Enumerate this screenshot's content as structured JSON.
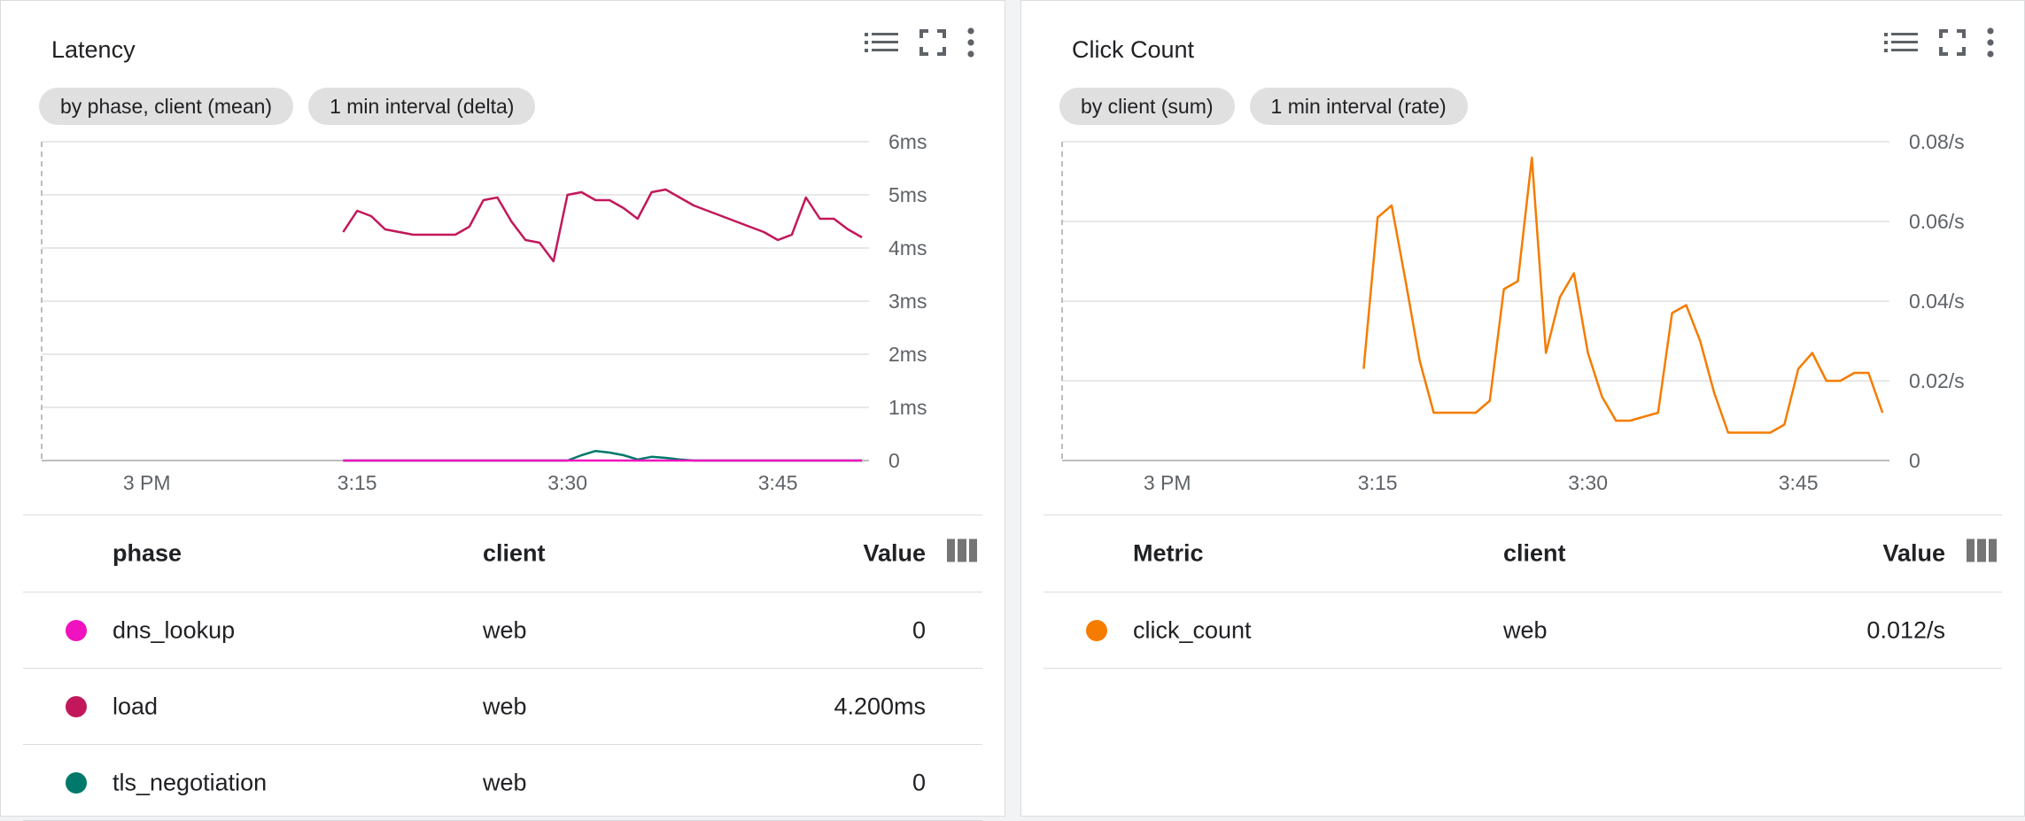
{
  "panels": [
    {
      "title": "Latency",
      "chips": [
        "by phase, client (mean)",
        "1 min interval (delta)"
      ],
      "columns": [
        "phase",
        "client",
        "Value"
      ],
      "rows": [
        {
          "name": "dns_lookup",
          "client": "web",
          "value": "0",
          "color": "#f012be"
        },
        {
          "name": "load",
          "client": "web",
          "value": "4.200ms",
          "color": "#c2185b"
        },
        {
          "name": "tls_negotiation",
          "client": "web",
          "value": "0",
          "color": "#00796b"
        }
      ]
    },
    {
      "title": "Click Count",
      "chips": [
        "by client (sum)",
        "1 min interval (rate)"
      ],
      "columns": [
        "Metric",
        "client",
        "Value"
      ],
      "rows": [
        {
          "name": "click_count",
          "client": "web",
          "value": "0.012/s",
          "color": "#f57c00"
        }
      ]
    }
  ],
  "chart_data": [
    {
      "type": "line",
      "title": "Latency",
      "x_ticks": [
        "3 PM",
        "3:15",
        "3:30",
        "3:45"
      ],
      "y_ticks": [
        "0",
        "1ms",
        "2ms",
        "3ms",
        "4ms",
        "5ms",
        "6ms"
      ],
      "x_unit": "minutes after 3 PM",
      "ylim": [
        0,
        6
      ],
      "xlim": [
        -7.5,
        51.5
      ],
      "grid": true,
      "series": [
        {
          "name": "load",
          "color": "#c2185b",
          "x": [
            14,
            15,
            16,
            17,
            18,
            19,
            20,
            21,
            22,
            23,
            24,
            25,
            26,
            27,
            28,
            29,
            30,
            31,
            32,
            33,
            34,
            35,
            36,
            37,
            38,
            39,
            40,
            41,
            42,
            43,
            44,
            45,
            46,
            47,
            48,
            49,
            50,
            51
          ],
          "y": [
            4.3,
            4.7,
            4.6,
            4.35,
            4.3,
            4.25,
            4.25,
            4.25,
            4.25,
            4.4,
            4.9,
            4.95,
            4.5,
            4.15,
            4.1,
            3.75,
            5.0,
            5.05,
            4.9,
            4.9,
            4.75,
            4.55,
            5.05,
            5.1,
            4.95,
            4.8,
            4.7,
            4.6,
            4.5,
            4.4,
            4.3,
            4.15,
            4.25,
            4.95,
            4.55,
            4.55,
            4.35,
            4.2
          ]
        },
        {
          "name": "tls_negotiation",
          "color": "#00796b",
          "x": [
            14,
            30,
            31,
            32,
            33,
            34,
            35,
            36,
            37,
            38,
            39,
            51
          ],
          "y": [
            0,
            0,
            0.1,
            0.18,
            0.15,
            0.1,
            0.02,
            0.07,
            0.05,
            0.02,
            0,
            0
          ]
        },
        {
          "name": "dns_lookup",
          "color": "#f012be",
          "x": [
            14,
            51
          ],
          "y": [
            0,
            0
          ]
        }
      ]
    },
    {
      "type": "line",
      "title": "Click Count",
      "x_ticks": [
        "3 PM",
        "3:15",
        "3:30",
        "3:45"
      ],
      "y_ticks": [
        "0",
        "0.02/s",
        "0.04/s",
        "0.06/s",
        "0.08/s"
      ],
      "x_unit": "minutes after 3 PM",
      "ylim": [
        0,
        0.08
      ],
      "xlim": [
        -7.5,
        51.5
      ],
      "grid": true,
      "series": [
        {
          "name": "click_count",
          "color": "#f57c00",
          "x": [
            14,
            15,
            16,
            17,
            18,
            19,
            20,
            21,
            22,
            23,
            24,
            25,
            26,
            27,
            28,
            29,
            30,
            31,
            32,
            33,
            34,
            35,
            36,
            37,
            38,
            39,
            40,
            41,
            42,
            43,
            44,
            45,
            46,
            47,
            48,
            49,
            50,
            51
          ],
          "y": [
            0.023,
            0.061,
            0.064,
            0.045,
            0.025,
            0.012,
            0.012,
            0.012,
            0.012,
            0.015,
            0.043,
            0.045,
            0.076,
            0.027,
            0.041,
            0.047,
            0.027,
            0.016,
            0.01,
            0.01,
            0.011,
            0.012,
            0.037,
            0.039,
            0.03,
            0.017,
            0.007,
            0.007,
            0.007,
            0.007,
            0.009,
            0.023,
            0.027,
            0.02,
            0.02,
            0.022,
            0.022,
            0.012
          ]
        }
      ]
    }
  ]
}
